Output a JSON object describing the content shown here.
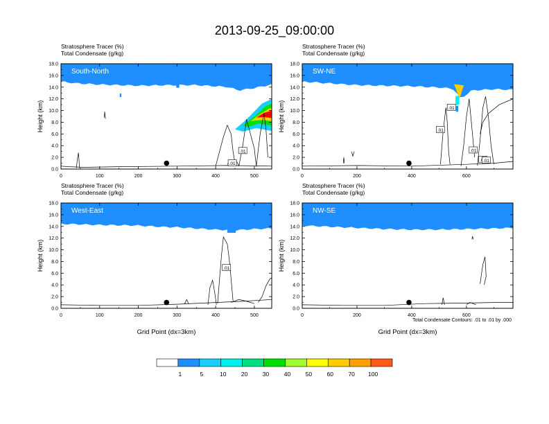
{
  "title": "2013-09-25_09:00:00",
  "field_labels": {
    "line1": "Stratosphere Tracer   (%)",
    "line2": "Total Condensate   (g/kg)"
  },
  "colorbar": {
    "levels": [
      "1",
      "5",
      "10",
      "20",
      "30",
      "40",
      "50",
      "60",
      "70",
      "100"
    ],
    "colors": [
      "#ffffff",
      "#1f8fff",
      "#18d0ff",
      "#00f0f0",
      "#00e080",
      "#00e000",
      "#a0ff30",
      "#ffff00",
      "#ffcc00",
      "#ffa000",
      "#ff5a1a",
      "#ff0000"
    ]
  },
  "contour_note": "Total Condensate Contours: .01 to .01 by .000",
  "chart_data": [
    {
      "type": "heatmap",
      "panel": "South-North",
      "title_lines": [
        "Stratosphere Tracer   (%)",
        "Total Condensate   (g/kg)"
      ],
      "ylabel": "Height (km)",
      "xlabel": "",
      "xlim": [
        0,
        545
      ],
      "ylim": [
        0,
        18
      ],
      "xticks": [
        "0",
        "100",
        "200",
        "300",
        "400",
        "500"
      ],
      "yticks": [
        "0.0",
        "2.0",
        "4.0",
        "6.0",
        "8.0",
        "10.0",
        "12.0",
        "14.0",
        "16.0",
        "18.0"
      ],
      "marker_x": 273,
      "contour_labels": [
        ".01",
        ".01"
      ],
      "tracer_profile": {
        "x": [
          0,
          40,
          100,
          200,
          280,
          350,
          400,
          430,
          460,
          500,
          545
        ],
        "height_km": [
          15.7,
          15.4,
          15.2,
          15.0,
          15.1,
          15.1,
          14.9,
          14.8,
          14.2,
          14.6,
          15.2
        ]
      }
    },
    {
      "type": "heatmap",
      "panel": "SW-NE",
      "title_lines": [
        "Stratosphere Tracer   (%)",
        "Total Condensate   (g/kg)"
      ],
      "ylabel": "Height (km)",
      "xlabel": "",
      "xlim": [
        0,
        770
      ],
      "ylim": [
        0,
        18
      ],
      "xticks": [
        "0",
        "200",
        "400",
        "600"
      ],
      "yticks": [
        "0.0",
        "2.0",
        "4.0",
        "6.0",
        "8.0",
        "10.0",
        "12.0",
        "14.0",
        "16.0",
        "18.0"
      ],
      "marker_x": 390,
      "contour_labels": [
        ".01",
        ".01",
        ".01",
        ".01",
        ".01"
      ],
      "tracer_profile": {
        "x": [
          0,
          100,
          200,
          300,
          400,
          500,
          550,
          580,
          620,
          700,
          770
        ],
        "height_km": [
          15.7,
          15.4,
          15.1,
          15.0,
          14.9,
          14.7,
          14.5,
          12.8,
          14.2,
          14.4,
          14.3
        ]
      }
    },
    {
      "type": "heatmap",
      "panel": "West-East",
      "title_lines": [
        "Stratosphere Tracer   (%)",
        "Total Condensate   (g/kg)"
      ],
      "ylabel": "Height (km)",
      "xlabel": "Grid Point (dx=3km)",
      "xlim": [
        0,
        545
      ],
      "ylim": [
        0,
        18
      ],
      "xticks": [
        "0",
        "100",
        "200",
        "300",
        "400",
        "500"
      ],
      "yticks": [
        "0.0",
        "2.0",
        "4.0",
        "6.0",
        "8.0",
        "10.0",
        "12.0",
        "14.0",
        "16.0",
        "18.0"
      ],
      "marker_x": 273,
      "contour_labels": [
        ".01"
      ],
      "tracer_profile": {
        "x": [
          0,
          100,
          200,
          250,
          300,
          350,
          400,
          450,
          500,
          545
        ],
        "height_km": [
          15.2,
          15.0,
          14.9,
          14.7,
          14.6,
          14.4,
          14.2,
          14.1,
          14.3,
          14.4
        ]
      }
    },
    {
      "type": "heatmap",
      "panel": "NW-SE",
      "title_lines": [
        "Stratosphere Tracer   (%)",
        "Total Condensate   (g/kg)"
      ],
      "ylabel": "Height (km)",
      "xlabel": "Grid Point (dx=3km)",
      "xlim": [
        0,
        770
      ],
      "ylim": [
        0,
        18
      ],
      "xticks": [
        "0",
        "200",
        "400",
        "600"
      ],
      "yticks": [
        "0.0",
        "2.0",
        "4.0",
        "6.0",
        "8.0",
        "10.0",
        "12.0",
        "14.0",
        "16.0",
        "18.0"
      ],
      "marker_x": 390,
      "contour_labels": [],
      "tracer_profile": {
        "x": [
          0,
          100,
          200,
          300,
          400,
          500,
          600,
          700,
          770
        ],
        "height_km": [
          14.9,
          14.7,
          14.5,
          14.3,
          14.2,
          14.2,
          14.3,
          14.4,
          14.5
        ]
      }
    }
  ]
}
